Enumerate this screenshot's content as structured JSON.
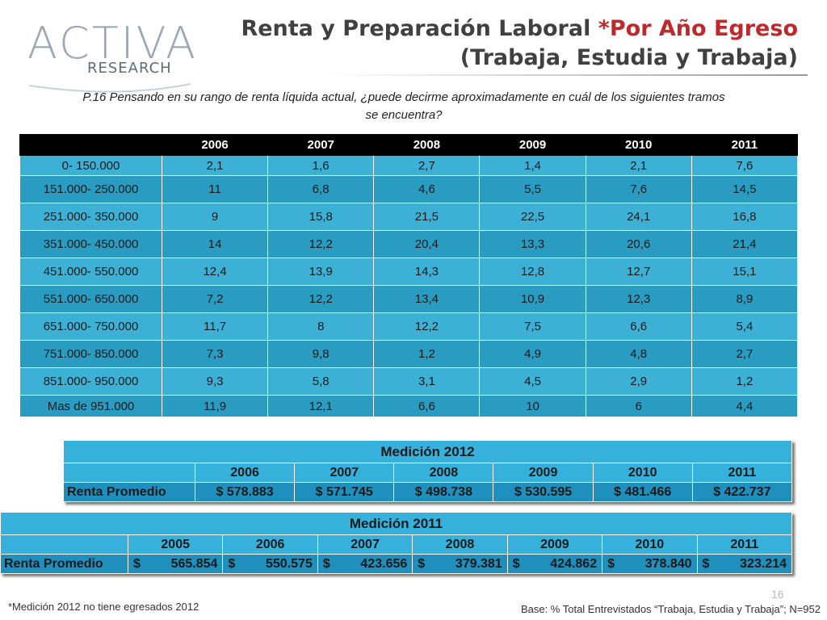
{
  "logo": {
    "main": "ACTIVA",
    "sub": "RESEARCH"
  },
  "title": {
    "line1_main": "Renta y Preparación Laboral ",
    "line1_accent": "*Por Año Egreso",
    "line2": "(Trabaja, Estudia y Trabaja)"
  },
  "question": "P.16  Pensando en su rango de renta líquida actual, ¿puede decirme aproximadamente en cuál de los siguientes tramos se encuentra?",
  "main_table": {
    "headers": [
      "",
      "2006",
      "2007",
      "2008",
      "2009",
      "2010",
      "2011"
    ],
    "rows": [
      [
        "0- 150.000",
        "2,1",
        "1,6",
        "2,7",
        "1,4",
        "2,1",
        "7,6"
      ],
      [
        "151.000- 250.000",
        "11",
        "6,8",
        "4,6",
        "5,5",
        "7,6",
        "14,5"
      ],
      [
        "251.000- 350.000",
        "9",
        "15,8",
        "21,5",
        "22,5",
        "24,1",
        "16,8"
      ],
      [
        "351.000- 450.000",
        "14",
        "12,2",
        "20,4",
        "13,3",
        "20,6",
        "21,4"
      ],
      [
        "451.000- 550.000",
        "12,4",
        "13,9",
        "14,3",
        "12,8",
        "12,7",
        "15,1"
      ],
      [
        "551.000- 650.000",
        "7,2",
        "12,2",
        "13,4",
        "10,9",
        "12,3",
        "8,9"
      ],
      [
        "651.000- 750.000",
        "11,7",
        "8",
        "12,2",
        "7,5",
        "6,6",
        "5,4"
      ],
      [
        "751.000- 850.000",
        "7,3",
        "9,8",
        "1,2",
        "4,9",
        "4,8",
        "2,7"
      ],
      [
        "851.000- 950.000",
        "9,3",
        "5,8",
        "3,1",
        "4,5",
        "2,9",
        "1,2"
      ],
      [
        "Mas de 951.000",
        "11,9",
        "12,1",
        "6,6",
        "10",
        "6",
        "4,4"
      ]
    ]
  },
  "medicion_2012": {
    "caption": "Medición 2012",
    "years": [
      "2006",
      "2007",
      "2008",
      "2009",
      "2010",
      "2011"
    ],
    "row_label": "Renta Promedio",
    "values": [
      "$ 578.883",
      "$ 571.745",
      "$ 498.738",
      "$ 530.595",
      "$ 481.466",
      "$ 422.737"
    ]
  },
  "medicion_2011": {
    "caption": "Medición 2011",
    "years": [
      "2005",
      "2006",
      "2007",
      "2008",
      "2009",
      "2010",
      "2011"
    ],
    "row_label": "Renta Promedio",
    "currency": "$",
    "values": [
      "565.854",
      "550.575",
      "423.656",
      "379.381",
      "424.862",
      "378.840",
      "323.214"
    ]
  },
  "footnote": "*Medición 2012 no tiene egresados 2012",
  "base_note": "Base: % Total Entrevistados “Trabaja, Estudia y Trabaja”; N=952",
  "page_number": "16"
}
